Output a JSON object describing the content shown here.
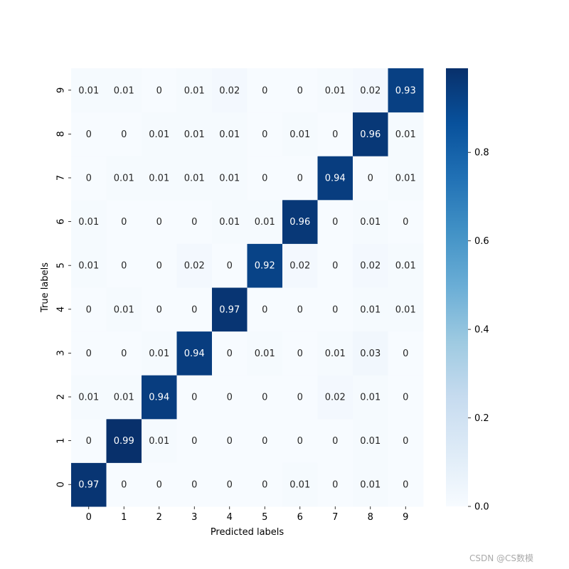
{
  "chart_data": {
    "type": "heatmap",
    "title": "",
    "xlabel": "Predicted labels",
    "ylabel": "True labels",
    "x_categories": [
      "0",
      "1",
      "2",
      "3",
      "4",
      "5",
      "6",
      "7",
      "8",
      "9"
    ],
    "y_categories_bottom_to_top": [
      "0",
      "1",
      "2",
      "3",
      "4",
      "5",
      "6",
      "7",
      "8",
      "9"
    ],
    "colormap": "Blues",
    "color_low": "#f7fbff",
    "color_high": "#08306b",
    "colorbar": {
      "range": [
        0,
        0.99
      ],
      "ticks": [
        0.0,
        0.2,
        0.4,
        0.6,
        0.8
      ],
      "tick_labels": [
        "0.0",
        "0.2",
        "0.4",
        "0.6",
        "0.8"
      ]
    },
    "rows_bottom_to_top": [
      [
        "0.97",
        "0",
        "0",
        "0",
        "0",
        "0",
        "0.01",
        "0",
        "0.01",
        "0"
      ],
      [
        "0",
        "0.99",
        "0.01",
        "0",
        "0",
        "0",
        "0",
        "0",
        "0.01",
        "0"
      ],
      [
        "0.01",
        "0.01",
        "0.94",
        "0",
        "0",
        "0",
        "0",
        "0.02",
        "0.01",
        "0"
      ],
      [
        "0",
        "0",
        "0.01",
        "0.94",
        "0",
        "0.01",
        "0",
        "0.01",
        "0.03",
        "0"
      ],
      [
        "0",
        "0.01",
        "0",
        "0",
        "0.97",
        "0",
        "0",
        "0",
        "0.01",
        "0.01"
      ],
      [
        "0.01",
        "0",
        "0",
        "0.02",
        "0",
        "0.92",
        "0.02",
        "0",
        "0.02",
        "0.01"
      ],
      [
        "0.01",
        "0",
        "0",
        "0",
        "0.01",
        "0.01",
        "0.96",
        "0",
        "0.01",
        "0"
      ],
      [
        "0",
        "0.01",
        "0.01",
        "0.01",
        "0.01",
        "0",
        "0",
        "0.94",
        "0",
        "0.01"
      ],
      [
        "0",
        "0",
        "0.01",
        "0.01",
        "0.01",
        "0",
        "0.01",
        "0",
        "0.96",
        "0.01"
      ],
      [
        "0.01",
        "0.01",
        "0",
        "0.01",
        "0.02",
        "0",
        "0",
        "0.01",
        "0.02",
        "0.93"
      ]
    ]
  },
  "watermark": "CSDN @CS数模"
}
